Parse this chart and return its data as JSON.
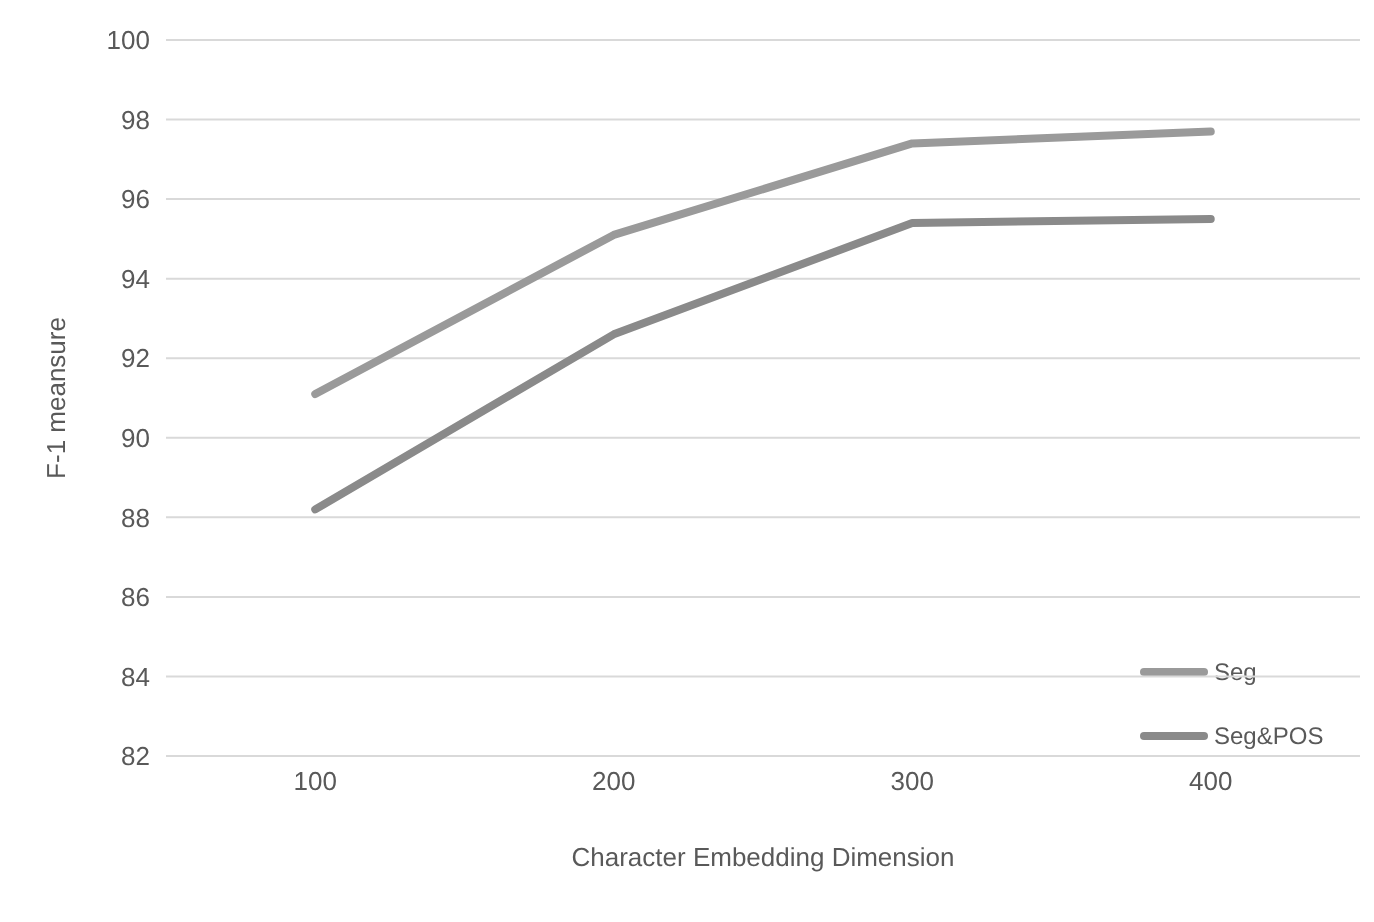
{
  "chart_data": {
    "type": "line",
    "xlabel": "Character Embedding Dimension",
    "ylabel": "F-1 meansure",
    "categories": [
      "100",
      "200",
      "300",
      "400"
    ],
    "series": [
      {
        "name": "Seg",
        "color": "#9a9a9a",
        "values": [
          91.1,
          95.1,
          97.4,
          97.7
        ]
      },
      {
        "name": "Seg&POS",
        "color": "#8a8a8a",
        "values": [
          88.2,
          92.6,
          95.4,
          95.5
        ]
      }
    ],
    "ylim": [
      82,
      100
    ],
    "yticks": [
      82,
      84,
      86,
      88,
      90,
      92,
      94,
      96,
      98,
      100
    ],
    "grid": "y",
    "legend": "bottom right",
    "marker": "none",
    "line_style": "solid"
  }
}
